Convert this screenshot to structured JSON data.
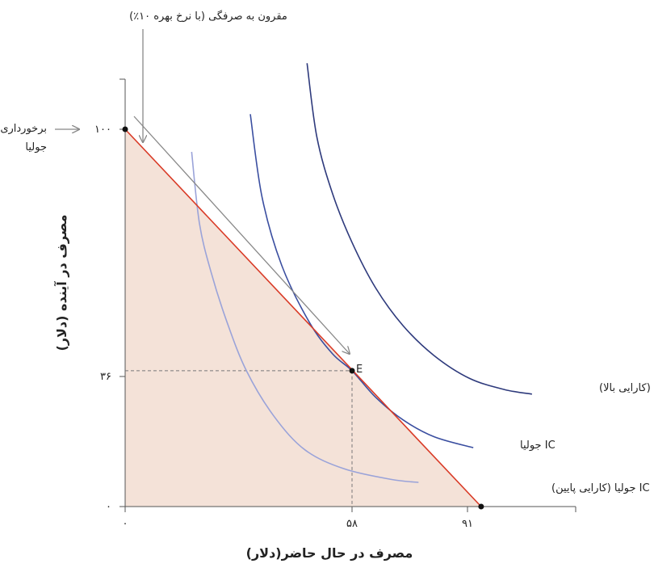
{
  "chart_data": {
    "type": "line",
    "xlabel": "مصرف در حال حاضر(دلار)",
    "ylabel": "مصرف در آینده (دلار)",
    "xlim": [
      0,
      100
    ],
    "ylim": [
      0,
      110
    ],
    "x_ticks": [
      {
        "value": 0,
        "label": "۰"
      },
      {
        "value": 58,
        "label": "۵۸"
      },
      {
        "value": 91,
        "label": "۹۱"
      }
    ],
    "y_ticks": [
      {
        "value": 0,
        "label": "۰"
      },
      {
        "value": 36,
        "label": "۳۶"
      },
      {
        "value": 100,
        "label": "۱۰۰"
      }
    ],
    "budget_line": {
      "points": [
        [
          0,
          100
        ],
        [
          91,
          0
        ]
      ],
      "color": "#d93a26",
      "fill_color": "#f4e2d8"
    },
    "endowment_label": [
      "برخورداری",
      "جولیا"
    ],
    "budget_arrow_label": "مقرون به صرفگی (با نرخ بهره ۱۰٪)",
    "point_E": {
      "x": 58,
      "y": 36,
      "label": "E"
    },
    "curves": [
      {
        "name": "IC جولیا (کارایی بالا)",
        "color": "#2e3a7c",
        "points": [
          [
            46.5,
            117.5
          ],
          [
            49,
            98
          ],
          [
            53,
            83
          ],
          [
            58,
            70
          ],
          [
            64,
            58
          ],
          [
            71,
            48
          ],
          [
            79,
            40
          ],
          [
            88,
            34
          ],
          [
            97,
            31
          ],
          [
            104,
            29.8
          ]
        ]
      },
      {
        "name": "IC جولیا",
        "color": "#3a4ea0",
        "points": [
          [
            32,
            104
          ],
          [
            35,
            82
          ],
          [
            40,
            64
          ],
          [
            47,
            49
          ],
          [
            53,
            40.5
          ],
          [
            58,
            36
          ],
          [
            64,
            29
          ],
          [
            71,
            23
          ],
          [
            79,
            18.5
          ],
          [
            89,
            15.6
          ]
        ]
      },
      {
        "name": "IC جولیا (کارایی پایین)",
        "color": "#9aa3d9",
        "points": [
          [
            17,
            94
          ],
          [
            19,
            75
          ],
          [
            22,
            62
          ],
          [
            26,
            49
          ],
          [
            31,
            36
          ],
          [
            38,
            24
          ],
          [
            46,
            15
          ],
          [
            56,
            10
          ],
          [
            68,
            7.2
          ],
          [
            75,
            6.4
          ]
        ]
      }
    ],
    "grid": false
  }
}
